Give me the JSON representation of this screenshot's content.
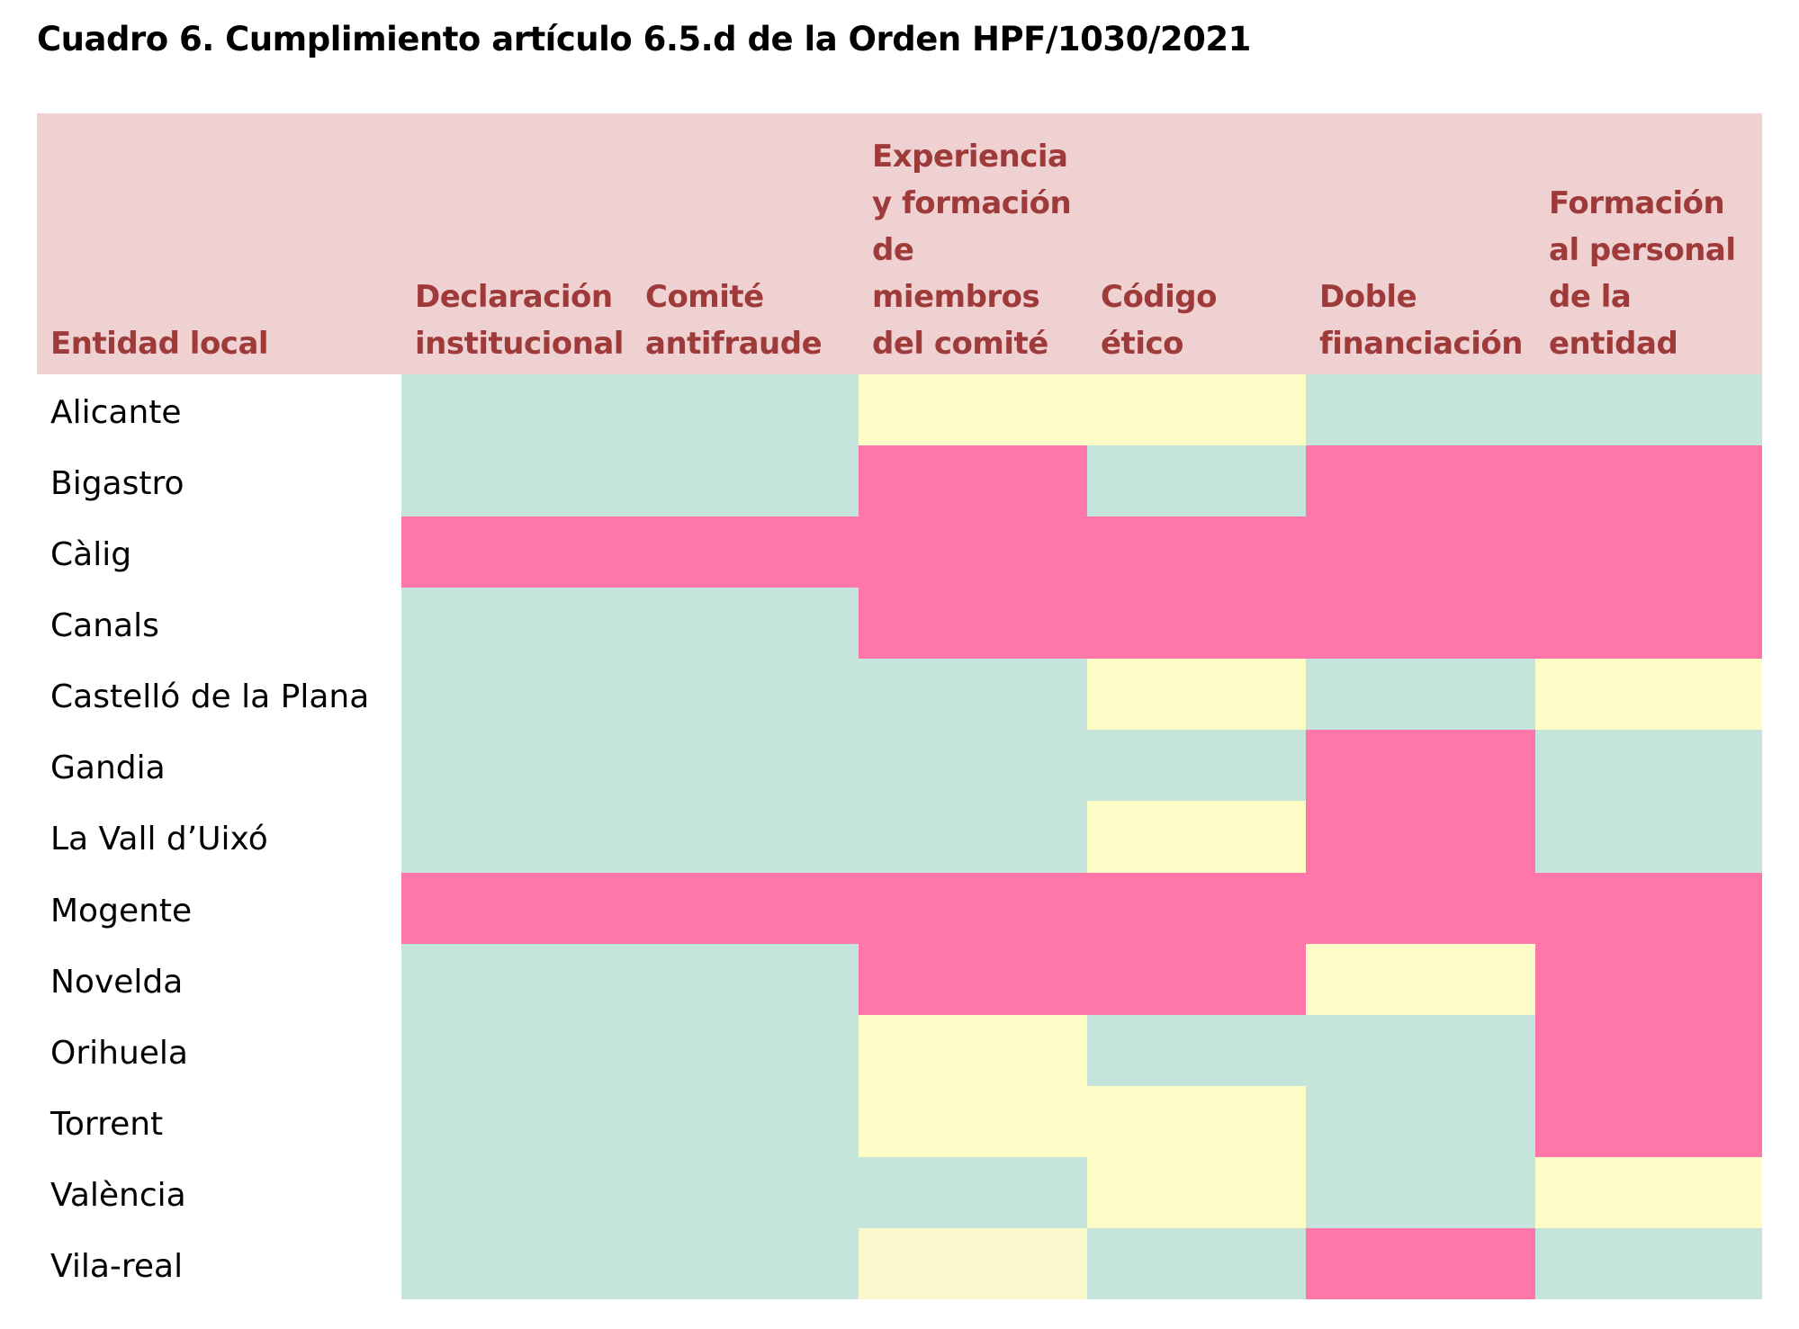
{
  "title": "Cuadro 6. Cumplimiento artículo 6.5.d de la Orden HPF/1030/2021",
  "table": {
    "header_color": "#efd1d1",
    "header_text_color": "#9e3a3a",
    "headers": [
      [
        "Entidad local"
      ],
      [
        "Declaración",
        "institucional"
      ],
      [
        "Comité",
        "antifraude"
      ],
      [
        "Experiencia",
        "y formación",
        "de",
        "miembros",
        "del comité"
      ],
      [
        "Código",
        "ético"
      ],
      [
        "Doble",
        "financiación"
      ],
      [
        "Formación",
        "al personal",
        "de la",
        "entidad"
      ]
    ],
    "rows": [
      {
        "name": "Alicante",
        "cells": [
          "#c5e5dc",
          "#c5e5dc",
          "#fdfcc7",
          "#fdfcc7",
          "#c5e5dc",
          "#c5e5dc"
        ]
      },
      {
        "name": "Bigastro",
        "cells": [
          "#c5e5dc",
          "#c5e5dc",
          "#ff77a8",
          "#c5e5dc",
          "#ff77a8",
          "#ff77a8"
        ]
      },
      {
        "name": "Càlig",
        "cells": [
          "#ff77a8",
          "#ff77a8",
          "#ff77a8",
          "#ff77a8",
          "#ff77a8",
          "#ff77a8"
        ]
      },
      {
        "name": "Canals",
        "cells": [
          "#c5e5dc",
          "#c5e5dc",
          "#ff77a8",
          "#ff77a8",
          "#ff77a8",
          "#ff77a8"
        ]
      },
      {
        "name": "Castelló de la Plana",
        "cells": [
          "#c5e5dc",
          "#c5e5dc",
          "#c5e5dc",
          "#fdfcc7",
          "#c5e5dc",
          "#fdfcc7"
        ]
      },
      {
        "name": "Gandia",
        "cells": [
          "#c5e5dc",
          "#c5e5dc",
          "#c5e5dc",
          "#c5e5dc",
          "#ff77a8",
          "#c5e5dc"
        ]
      },
      {
        "name": "La Vall d’Uixó",
        "cells": [
          "#c5e5dc",
          "#c5e5dc",
          "#c5e5dc",
          "#fdfcc7",
          "#ff77a8",
          "#c5e5dc"
        ]
      },
      {
        "name": "Mogente",
        "cells": [
          "#ff77a8",
          "#ff77a8",
          "#ff77a8",
          "#ff77a8",
          "#ff77a8",
          "#ff77a8"
        ]
      },
      {
        "name": "Novelda",
        "cells": [
          "#c5e5dc",
          "#c5e5dc",
          "#ff77a8",
          "#ff77a8",
          "#fdfcc7",
          "#ff77a8"
        ]
      },
      {
        "name": "Orihuela",
        "cells": [
          "#c5e5dc",
          "#c5e5dc",
          "#fdfcc7",
          "#c5e5dc",
          "#c5e5dc",
          "#ff77a8"
        ]
      },
      {
        "name": "Torrent",
        "cells": [
          "#c5e5dc",
          "#c5e5dc",
          "#fdfcc7",
          "#fdfcc7",
          "#c5e5dc",
          "#ff77a8"
        ]
      },
      {
        "name": "València",
        "cells": [
          "#c5e5dc",
          "#c5e5dc",
          "#c5e5dc",
          "#fdfcc7",
          "#c5e5dc",
          "#fdfcc7"
        ]
      },
      {
        "name": "Vila-real",
        "cells": [
          "#c5e5dc",
          "#c5e5dc",
          "#faf7cc",
          "#c5e5dc",
          "#ff77a8",
          "#c5e5dc"
        ]
      }
    ]
  }
}
